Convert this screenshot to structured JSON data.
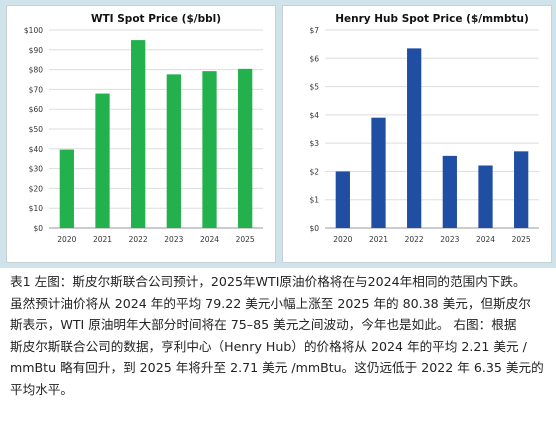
{
  "chart_data": [
    {
      "type": "bar",
      "title": "WTI Spot Price ($/bbl)",
      "categories": [
        "2020",
        "2021",
        "2022",
        "2023",
        "2024",
        "2025"
      ],
      "values": [
        39.6,
        67.9,
        94.9,
        77.6,
        79.22,
        80.38
      ],
      "ylim": [
        0,
        100
      ],
      "yticks": [
        0,
        10,
        20,
        30,
        40,
        50,
        60,
        70,
        80,
        90,
        100
      ],
      "ytick_labels": [
        "$0",
        "$10",
        "$20",
        "$30",
        "$40",
        "$50",
        "$60",
        "$70",
        "$80",
        "$90",
        "$100"
      ],
      "grid": true,
      "bar_color": "#22b14c"
    },
    {
      "type": "bar",
      "title": "Henry Hub Spot Price ($/mmbtu)",
      "categories": [
        "2020",
        "2021",
        "2022",
        "2023",
        "2024",
        "2025"
      ],
      "values": [
        2.0,
        3.9,
        6.35,
        2.55,
        2.21,
        2.71
      ],
      "ylim": [
        0,
        7
      ],
      "yticks": [
        0,
        1,
        2,
        3,
        4,
        5,
        6,
        7
      ],
      "ytick_labels": [
        "$0",
        "$1",
        "$2",
        "$3",
        "$4",
        "$5",
        "$6",
        "$7"
      ],
      "grid": true,
      "bar_color": "#1f4ea3"
    }
  ],
  "caption": {
    "lines": [
      "表1 左图：斯皮尔斯联合公司预计，2025年WTI原油价格将在与2024年相同的范围内下跌。",
      "虽然预计油价将从 2024 年的平均 79.22 美元小幅上涨至 2025 年的 80.38 美元，但斯皮尔",
      "斯表示，WTI 原油明年大部分时间将在 75–85 美元之间波动，今年也是如此。 右图：根据",
      "斯皮尔斯联合公司的数据，亨利中心（Henry Hub）的价格将从 2024 年的平均 2.21 美元 /",
      "mmBtu 略有回升，到 2025 年将升至 2.71 美元 /mmBtu。这仍远低于 2022 年 6.35 美元的",
      "平均水平。"
    ]
  }
}
